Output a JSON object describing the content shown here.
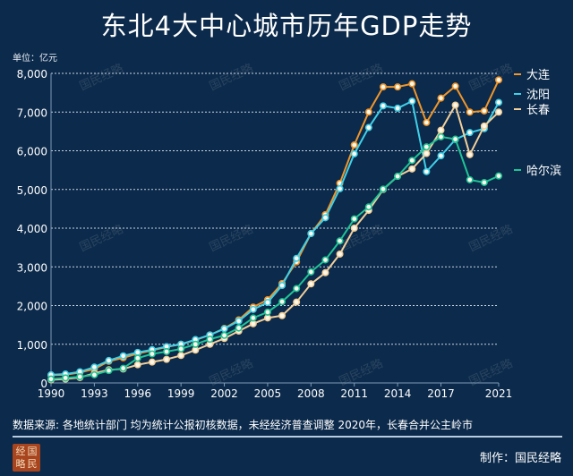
{
  "title": "东北4大中心城市历年GDP走势",
  "unit_label": "单位：亿元",
  "source": "数据来源: 各地统计部门  均为统计公报初核数据，未经经济普查调整   2020年，长春合并公主岭市",
  "credit": "制作：国民经略",
  "watermark": "国民经略",
  "logo_text": [
    "经",
    "国",
    "略",
    "民"
  ],
  "colors": {
    "background": "#0c2a4b",
    "grid": "#c9d6e4"
  },
  "chart_data": {
    "type": "line",
    "title": "东北4大中心城市历年GDP走势",
    "ylabel": "单位：亿元",
    "xlabel": "",
    "ylim": [
      0,
      8000
    ],
    "xlim": [
      1990,
      2021
    ],
    "yticks": [
      "0",
      "1,000",
      "2,000",
      "3,000",
      "4,000",
      "5,000",
      "6,000",
      "7,000",
      "8,000"
    ],
    "xticks": [
      "1990",
      "1993",
      "1996",
      "1999",
      "2002",
      "2005",
      "2008",
      "2011",
      "2014",
      "2017",
      "2021"
    ],
    "grid": true,
    "legend_position": "right",
    "x": [
      1990,
      1991,
      1992,
      1993,
      1994,
      1995,
      1996,
      1997,
      1998,
      1999,
      2000,
      2001,
      2002,
      2003,
      2004,
      2005,
      2006,
      2007,
      2008,
      2009,
      2010,
      2011,
      2012,
      2013,
      2014,
      2015,
      2016,
      2017,
      2018,
      2019,
      2020,
      2021
    ],
    "series": [
      {
        "name": "大连",
        "color": "#f0962a",
        "values": [
          200,
          210,
          270,
          360,
          560,
          650,
          760,
          840,
          930,
          1000,
          1110,
          1240,
          1410,
          1630,
          1960,
          2150,
          2570,
          3130,
          3860,
          4350,
          5160,
          6150,
          7000,
          7650,
          7650,
          7730,
          6730,
          7360,
          7670,
          7000,
          7030,
          7830
        ]
      },
      {
        "name": "沈阳",
        "color": "#3fd0e8",
        "values": [
          210,
          230,
          290,
          410,
          580,
          700,
          790,
          860,
          940,
          1000,
          1120,
          1240,
          1400,
          1600,
          1900,
          2080,
          2520,
          3220,
          3860,
          4270,
          5020,
          5920,
          6600,
          7160,
          7100,
          7280,
          5460,
          5870,
          6290,
          6470,
          6570,
          7250
        ]
      },
      {
        "name": "长春",
        "color": "#f3d09a",
        "values": [
          80,
          100,
          140,
          250,
          340,
          360,
          470,
          540,
          610,
          710,
          850,
          1000,
          1150,
          1340,
          1530,
          1680,
          1740,
          2090,
          2560,
          2850,
          3330,
          4000,
          4460,
          5000,
          5340,
          5530,
          5930,
          6530,
          7180,
          5900,
          6640,
          7000
        ]
      },
      {
        "name": "哈尔滨",
        "color": "#1fc496",
        "values": [
          100,
          130,
          160,
          210,
          320,
          380,
          640,
          750,
          810,
          880,
          1000,
          1130,
          1230,
          1420,
          1680,
          1830,
          2100,
          2440,
          2870,
          3180,
          3670,
          4240,
          4550,
          5010,
          5340,
          5750,
          6100,
          6360,
          6300,
          5250,
          5180,
          5350
        ]
      }
    ]
  }
}
